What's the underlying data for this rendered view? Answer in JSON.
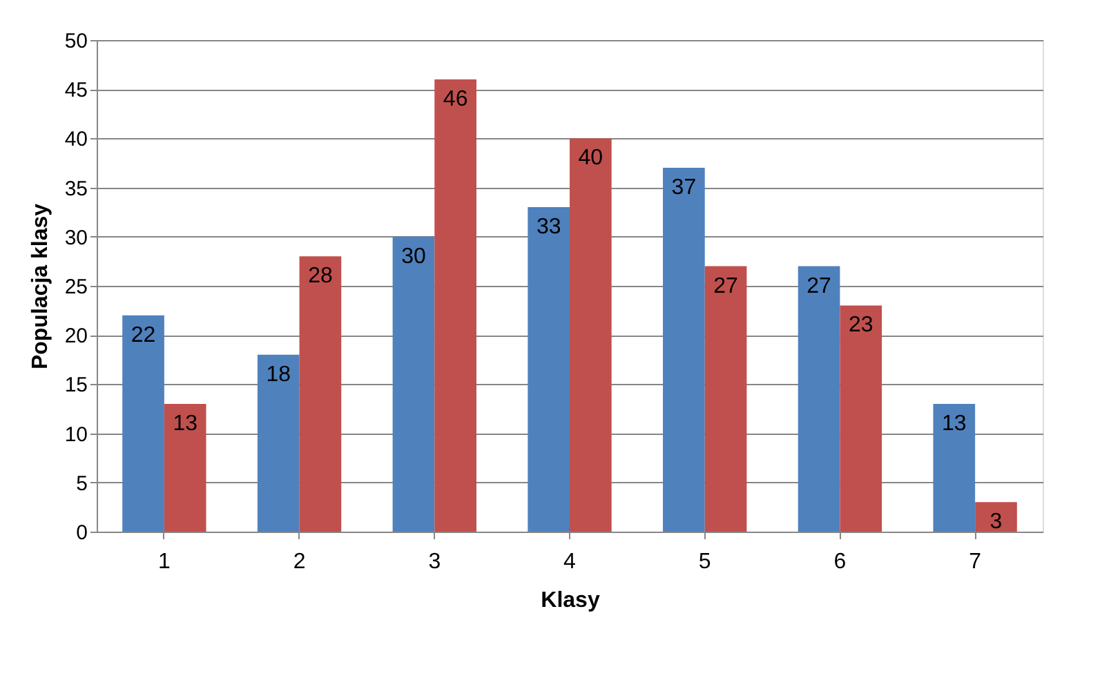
{
  "chart_data": {
    "type": "bar",
    "xlabel": "Klasy",
    "ylabel": "Populacja klasy",
    "categories": [
      "1",
      "2",
      "3",
      "4",
      "5",
      "6",
      "7"
    ],
    "series": [
      {
        "color": "#4f81bd",
        "values": [
          22,
          18,
          30,
          33,
          37,
          27,
          13
        ]
      },
      {
        "color": "#c0504d",
        "values": [
          13,
          28,
          46,
          40,
          27,
          23,
          3
        ]
      }
    ],
    "ylim": [
      0,
      50
    ],
    "yticks": [
      0,
      5,
      10,
      15,
      20,
      25,
      30,
      35,
      40,
      45,
      50
    ],
    "grid": "y",
    "legend": false,
    "data_labels": true
  }
}
